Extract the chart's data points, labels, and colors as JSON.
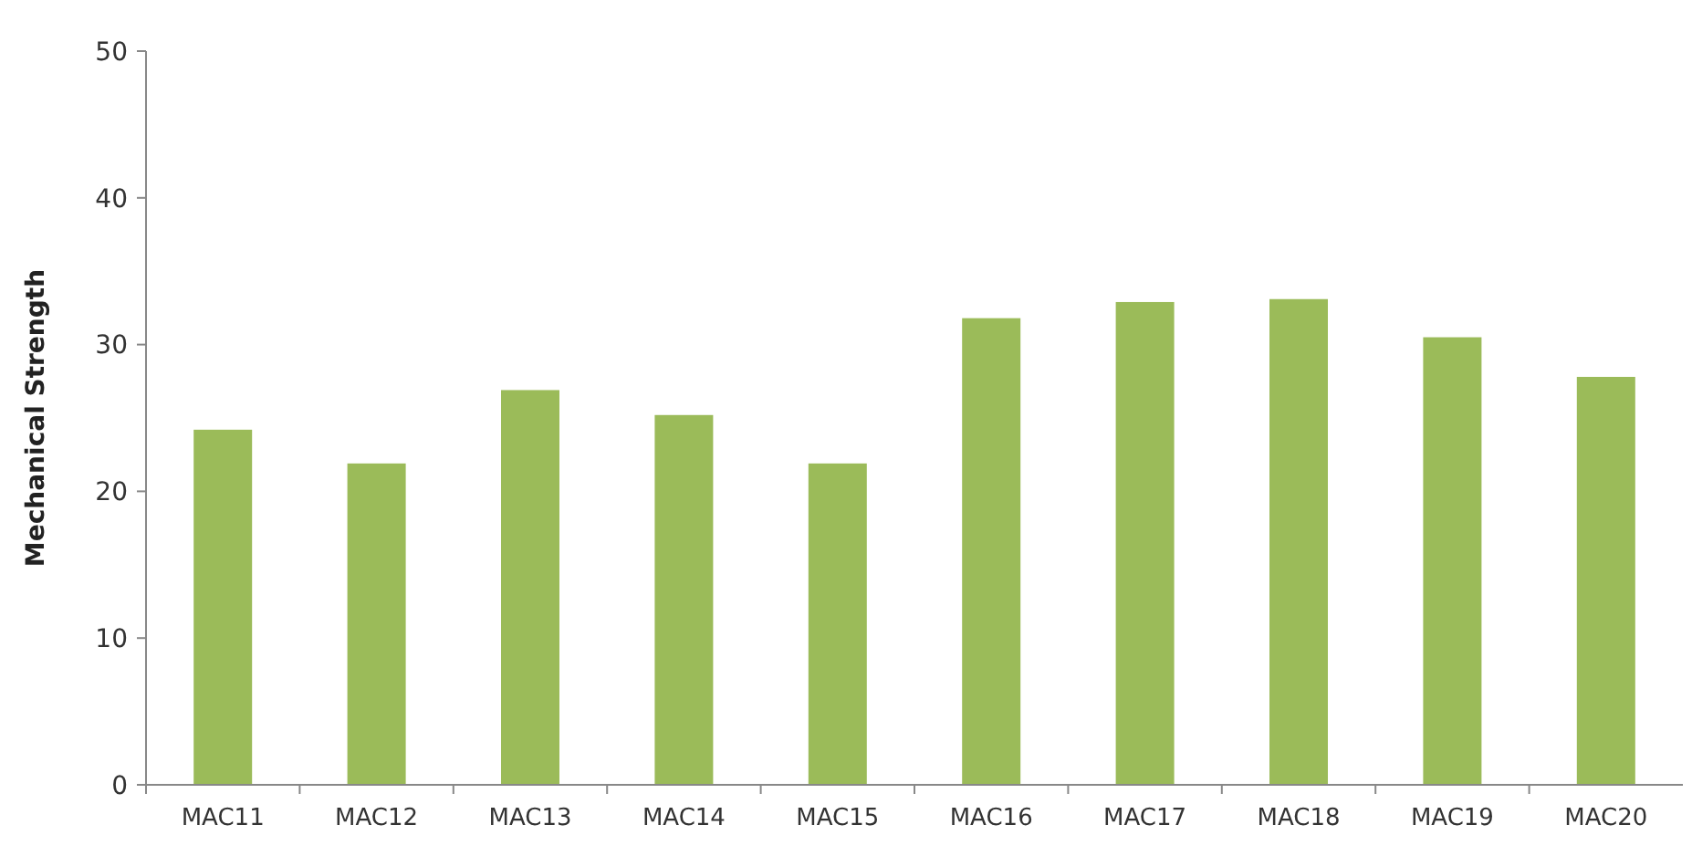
{
  "chart_data": {
    "type": "bar",
    "ylabel": "Mechanical Strength",
    "categories": [
      "MAC11",
      "MAC12",
      "MAC13",
      "MAC14",
      "MAC15",
      "MAC16",
      "MAC17",
      "MAC18",
      "MAC19",
      "MAC20"
    ],
    "values": [
      24.2,
      21.9,
      26.9,
      25.2,
      21.9,
      31.8,
      32.9,
      33.1,
      30.5,
      27.8
    ],
    "color": "#9bbb59",
    "ylim": [
      0,
      50
    ],
    "yticks": [
      0,
      10,
      20,
      30,
      40,
      50
    ],
    "grid": false
  }
}
